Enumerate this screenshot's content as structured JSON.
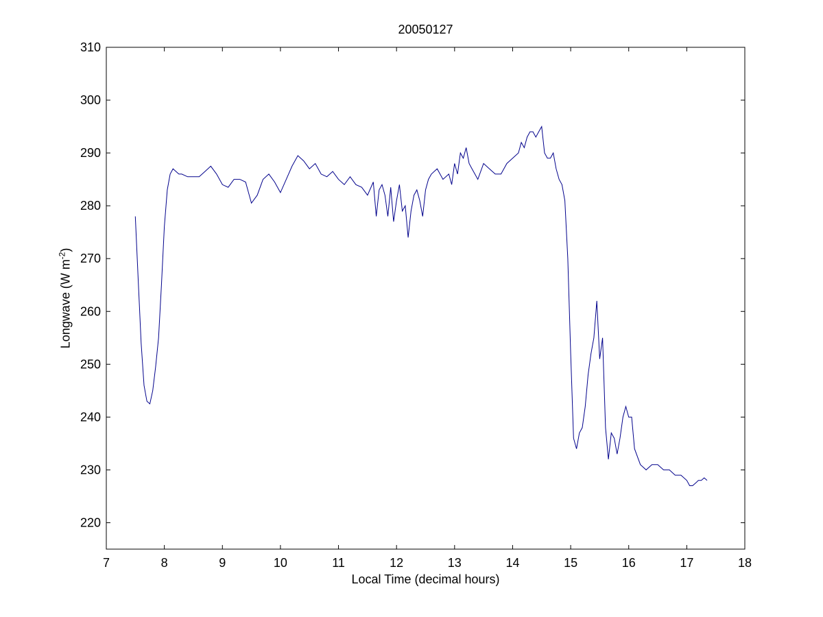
{
  "chart_data": {
    "type": "line",
    "title": "20050127",
    "xlabel": "Local Time (decimal hours)",
    "ylabel_prefix": "Longwave (W m",
    "ylabel_sup": "-2",
    "ylabel_suffix": ")",
    "xlim": [
      7,
      18
    ],
    "ylim": [
      215,
      310
    ],
    "xticks": [
      7,
      8,
      9,
      10,
      11,
      12,
      13,
      14,
      15,
      16,
      17,
      18
    ],
    "yticks": [
      220,
      230,
      240,
      250,
      260,
      270,
      280,
      290,
      300,
      310
    ],
    "grid": false,
    "series": [
      {
        "color": "#00008B",
        "x": [
          7.5,
          7.55,
          7.6,
          7.65,
          7.7,
          7.75,
          7.8,
          7.85,
          7.9,
          7.95,
          8.0,
          8.05,
          8.1,
          8.15,
          8.2,
          8.25,
          8.3,
          8.4,
          8.5,
          8.6,
          8.7,
          8.8,
          8.9,
          9.0,
          9.1,
          9.2,
          9.3,
          9.4,
          9.5,
          9.6,
          9.7,
          9.8,
          9.9,
          10.0,
          10.1,
          10.2,
          10.3,
          10.4,
          10.5,
          10.6,
          10.7,
          10.8,
          10.9,
          11.0,
          11.1,
          11.2,
          11.3,
          11.4,
          11.5,
          11.6,
          11.65,
          11.7,
          11.75,
          11.8,
          11.85,
          11.9,
          11.95,
          12.0,
          12.05,
          12.1,
          12.15,
          12.2,
          12.25,
          12.3,
          12.35,
          12.4,
          12.45,
          12.5,
          12.55,
          12.6,
          12.7,
          12.8,
          12.9,
          12.95,
          13.0,
          13.05,
          13.1,
          13.15,
          13.2,
          13.25,
          13.3,
          13.4,
          13.5,
          13.6,
          13.7,
          13.8,
          13.9,
          14.0,
          14.1,
          14.15,
          14.2,
          14.25,
          14.3,
          14.35,
          14.4,
          14.45,
          14.5,
          14.55,
          14.6,
          14.65,
          14.7,
          14.75,
          14.8,
          14.85,
          14.9,
          14.95,
          15.0,
          15.05,
          15.1,
          15.15,
          15.2,
          15.25,
          15.3,
          15.35,
          15.4,
          15.45,
          15.5,
          15.55,
          15.6,
          15.65,
          15.7,
          15.75,
          15.8,
          15.85,
          15.9,
          15.95,
          16.0,
          16.05,
          16.1,
          16.2,
          16.3,
          16.4,
          16.5,
          16.6,
          16.7,
          16.8,
          16.9,
          17.0,
          17.05,
          17.1,
          17.15,
          17.2,
          17.25,
          17.3,
          17.35
        ],
        "y": [
          278,
          266,
          254,
          246,
          243,
          242.5,
          245,
          249.5,
          255,
          265,
          276,
          283,
          286,
          287,
          286.5,
          286,
          286,
          285.5,
          285.5,
          285.5,
          286.5,
          287.5,
          286,
          284,
          283.5,
          285,
          285,
          284.5,
          280.5,
          282,
          285,
          286,
          284.5,
          282.5,
          285,
          287.5,
          289.5,
          288.5,
          287,
          288,
          286,
          285.5,
          286.5,
          285,
          284,
          285.5,
          284,
          283.5,
          282,
          284.5,
          278,
          283,
          284,
          282,
          278,
          283.5,
          277,
          281,
          284,
          279,
          280,
          274,
          279,
          282,
          283,
          281,
          278,
          283,
          285,
          286,
          287,
          285,
          286,
          284,
          288,
          286,
          290,
          289,
          291,
          288,
          287,
          285,
          288,
          287,
          286,
          286,
          288,
          289,
          290,
          292,
          291,
          293,
          294,
          294,
          293,
          294,
          295,
          290,
          289,
          289,
          290,
          287,
          285,
          284,
          281,
          270,
          252,
          236,
          234,
          237,
          238,
          242,
          248,
          252,
          255,
          262,
          251,
          255,
          238,
          232,
          237,
          236,
          233,
          236,
          240,
          242,
          240,
          240,
          234,
          231,
          230,
          231,
          231,
          230,
          230,
          229,
          229,
          228,
          227,
          227,
          227.5,
          228,
          228,
          228.5,
          228
        ],
        "note_units": "W m-2"
      }
    ]
  }
}
